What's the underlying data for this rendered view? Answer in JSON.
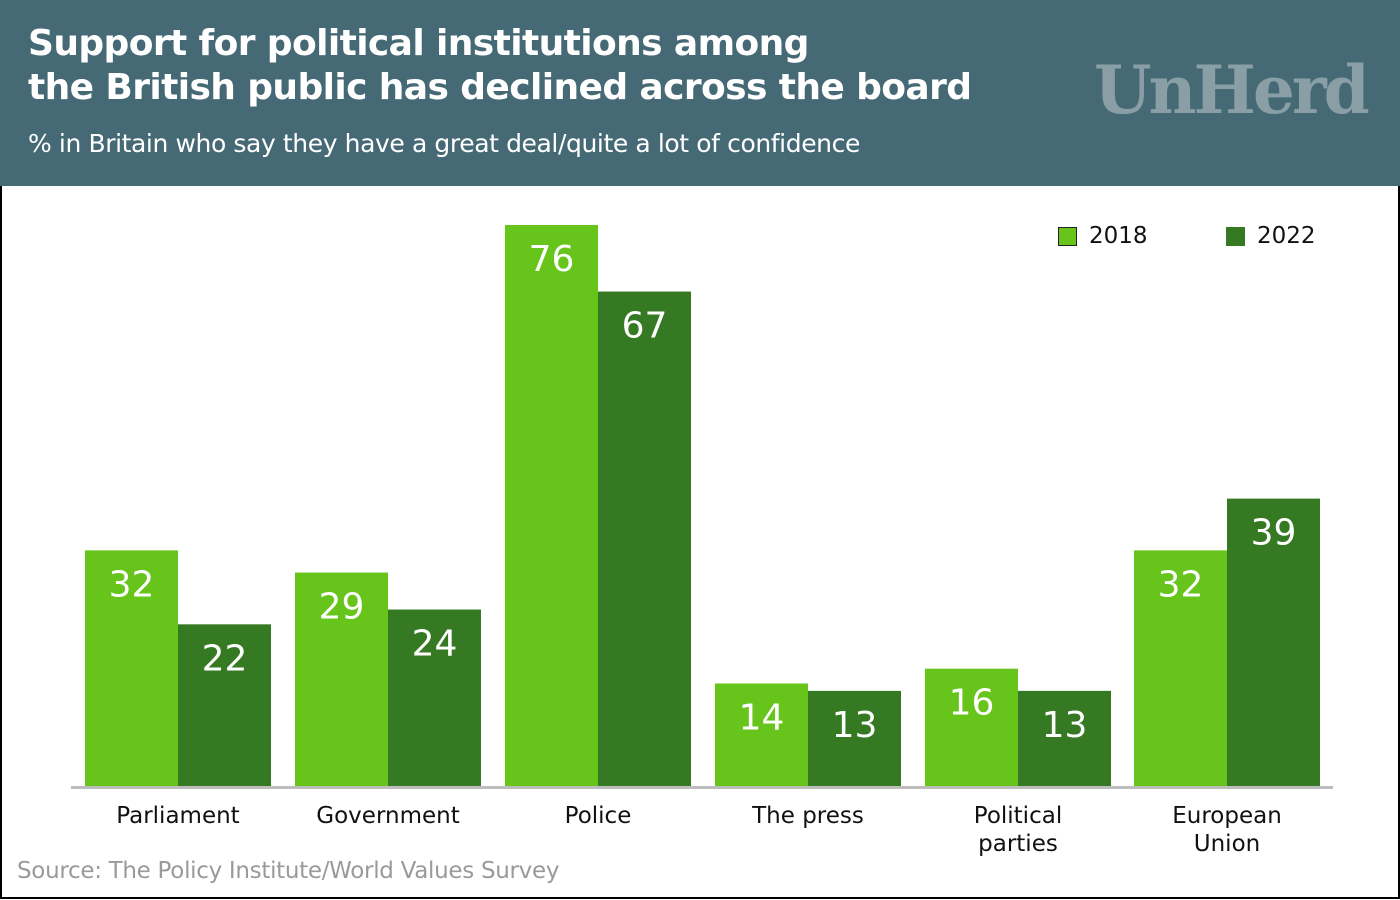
{
  "header": {
    "title_line1": "Support for political institutions among",
    "title_line2": "the British public has declined across the board",
    "subtitle": "% in Britain who say they have a great deal/quite a lot of confidence",
    "logo_text": "UnHerd"
  },
  "source": "Source: The Policy Institute/World Values Survey",
  "colors": {
    "header_bg": "#466a75",
    "series_2018": "#66c41a",
    "series_2022": "#357a22",
    "baseline": "#bdbdbd",
    "logo": "#8a9ea5"
  },
  "chart_data": {
    "type": "bar",
    "title": "Support for political institutions among the British public has declined across the board",
    "subtitle": "% in Britain who say they have a great deal/quite a lot of confidence",
    "xlabel": "",
    "ylabel": "",
    "ylim": [
      0,
      76
    ],
    "grid": false,
    "legend_position": "top-right",
    "categories": [
      [
        "Parliament"
      ],
      [
        "Government"
      ],
      [
        "Police"
      ],
      [
        "The press"
      ],
      [
        "Political",
        "parties"
      ],
      [
        "European",
        "Union"
      ]
    ],
    "series": [
      {
        "name": "2018",
        "color": "#66c41a",
        "values": [
          32,
          29,
          76,
          14,
          16,
          32
        ]
      },
      {
        "name": "2022",
        "color": "#357a22",
        "values": [
          22,
          24,
          67,
          13,
          13,
          39
        ]
      }
    ]
  }
}
